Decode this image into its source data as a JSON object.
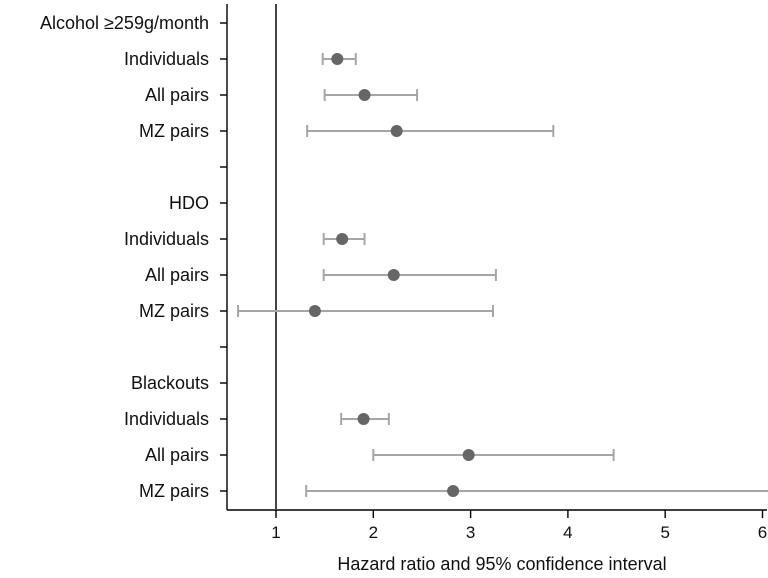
{
  "chart_data": {
    "type": "forest",
    "xlabel": "Hazard ratio and 95% confidence interval",
    "xlim": [
      0.6,
      6.1
    ],
    "xticks": [
      1,
      2,
      3,
      4,
      5,
      6
    ],
    "xtick_labels": [
      "1",
      "2",
      "3",
      "4",
      "5",
      "6"
    ],
    "reference_line": 1,
    "colors": {
      "point": "#666666",
      "ci": "#a6a6a6",
      "reference": "#444444",
      "axis": "#000000"
    },
    "rows": [
      {
        "label": "Alcohol ≥259g/month",
        "kind": "header"
      },
      {
        "label": "Individuals",
        "kind": "estimate",
        "hr": 1.63,
        "lo": 1.48,
        "hi": 1.82
      },
      {
        "label": "All pairs",
        "kind": "estimate",
        "hr": 1.91,
        "lo": 1.5,
        "hi": 2.45
      },
      {
        "label": "MZ pairs",
        "kind": "estimate",
        "hr": 2.24,
        "lo": 1.32,
        "hi": 3.85
      },
      {
        "label": "",
        "kind": "spacer"
      },
      {
        "label": "HDO",
        "kind": "header"
      },
      {
        "label": "Individuals",
        "kind": "estimate",
        "hr": 1.68,
        "lo": 1.49,
        "hi": 1.91
      },
      {
        "label": "All pairs",
        "kind": "estimate",
        "hr": 2.21,
        "lo": 1.49,
        "hi": 3.26
      },
      {
        "label": "MZ pairs",
        "kind": "estimate",
        "hr": 1.4,
        "lo": 0.61,
        "hi": 3.23
      },
      {
        "label": "",
        "kind": "spacer"
      },
      {
        "label": "Blackouts",
        "kind": "header"
      },
      {
        "label": "Individuals",
        "kind": "estimate",
        "hr": 1.9,
        "lo": 1.67,
        "hi": 2.16
      },
      {
        "label": "All pairs",
        "kind": "estimate",
        "hr": 2.98,
        "lo": 2.0,
        "hi": 4.47
      },
      {
        "label": "MZ pairs",
        "kind": "estimate",
        "hr": 2.82,
        "lo": 1.31,
        "hi": 6.08
      }
    ]
  }
}
